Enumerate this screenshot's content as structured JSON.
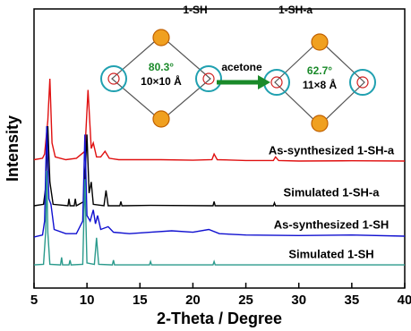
{
  "chart_data": {
    "type": "line",
    "xlabel": "2-Theta / Degree",
    "ylabel": "Intensity",
    "xlim": [
      5,
      40
    ],
    "xticks": [
      5,
      10,
      15,
      20,
      25,
      30,
      35,
      40
    ],
    "ylim": [
      0,
      100
    ],
    "annotations": [
      "1-SH",
      "1-SH-a",
      "acetone",
      "80.3°",
      "10×10 Å",
      "62.7°",
      "11×8 Å"
    ],
    "series": [
      {
        "name": "As-synthesized 1-SH-a",
        "color": "#e01010",
        "x": [
          5,
          5.8,
          6.0,
          6.3,
          6.5,
          6.7,
          7.0,
          8,
          9,
          9.8,
          10.1,
          10.4,
          10.6,
          10.9,
          11.3,
          11.7,
          12.1,
          13,
          15,
          17,
          20,
          21.8,
          22.0,
          22.3,
          25,
          27.6,
          27.8,
          28.1,
          30,
          35,
          40
        ],
        "values": [
          46,
          46.5,
          48,
          60,
          75,
          52,
          47,
          46,
          46.5,
          49,
          71,
          50,
          52,
          47,
          47,
          49,
          46.5,
          46,
          46,
          46,
          45.8,
          46,
          48,
          46,
          45.7,
          45.7,
          47,
          45.7,
          45.5,
          45.6,
          45.5
        ]
      },
      {
        "name": "Simulated 1-SH-a",
        "color": "#000000",
        "x": [
          5,
          5.9,
          6.1,
          6.3,
          6.5,
          6.8,
          8.2,
          8.3,
          8.4,
          8.8,
          8.9,
          9.0,
          9.7,
          10.0,
          10.2,
          10.4,
          10.6,
          11.6,
          11.8,
          12.0,
          13.1,
          13.2,
          13.3,
          16,
          21.9,
          22.0,
          22.1,
          27.6,
          27.7,
          27.8,
          40
        ],
        "values": [
          29.5,
          30,
          36,
          58,
          38,
          30,
          29.5,
          32,
          29.5,
          29.5,
          32,
          29.5,
          31,
          55,
          34,
          38,
          30,
          29.5,
          35,
          29.5,
          29.5,
          31,
          29.5,
          29.6,
          29.5,
          31,
          29.5,
          29.5,
          30.5,
          29.5,
          29.5
        ]
      },
      {
        "name": "As-synthesized 1-SH",
        "color": "#1010d0",
        "x": [
          5,
          5.8,
          6.0,
          6.2,
          6.4,
          6.6,
          6.9,
          8,
          9,
          9.6,
          9.8,
          10.0,
          10.3,
          10.6,
          10.8,
          11.0,
          11.3,
          12.0,
          12.5,
          14,
          16,
          18,
          20,
          21.5,
          22.5,
          25,
          30,
          35,
          40
        ],
        "values": [
          18.3,
          19,
          24,
          58,
          32,
          30,
          21,
          19.5,
          19.5,
          24,
          55,
          26,
          24,
          28,
          23,
          26,
          21,
          22,
          20,
          19.5,
          20,
          20.5,
          20,
          21,
          19.5,
          19,
          18.8,
          19,
          18.6
        ]
      },
      {
        "name": "Simulated 1-SH",
        "color": "#2a9a8c",
        "x": [
          5,
          5.9,
          6.1,
          6.2,
          6.3,
          6.5,
          7.5,
          7.6,
          7.7,
          8.3,
          8.4,
          8.5,
          9.6,
          9.8,
          10.0,
          10.7,
          10.9,
          11.1,
          12.4,
          12.5,
          12.6,
          15.9,
          16.0,
          16.1,
          21.9,
          22.0,
          22.1,
          40
        ],
        "values": [
          8.3,
          8.5,
          20,
          42,
          20,
          8.5,
          8.3,
          11,
          8.3,
          8.3,
          10,
          8.3,
          8.5,
          39,
          9,
          8.5,
          18,
          8.5,
          8.3,
          10,
          8.3,
          8.3,
          9.5,
          8.3,
          8.3,
          9.5,
          8.3,
          8.3
        ]
      }
    ]
  }
}
